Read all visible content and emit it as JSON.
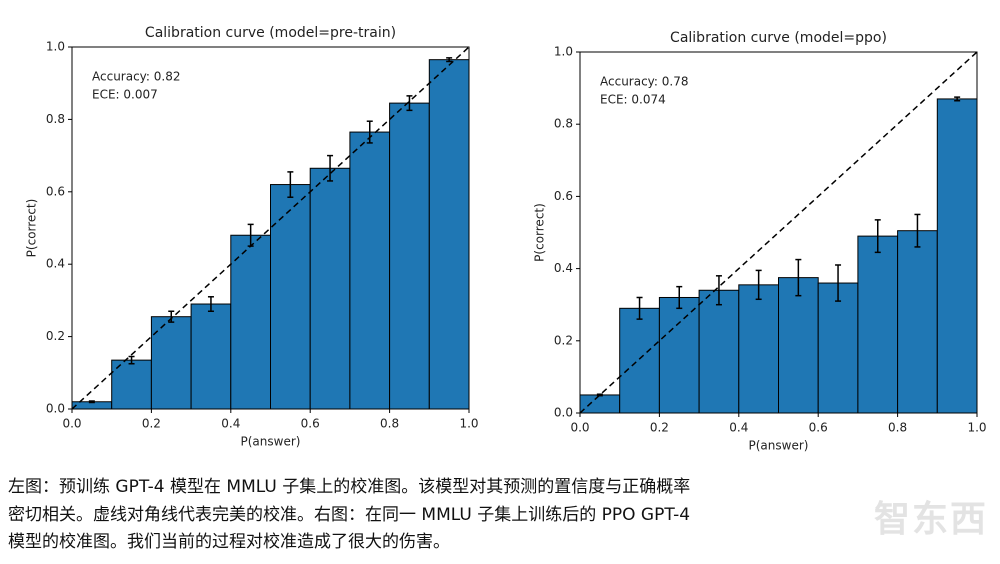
{
  "chart_data": [
    {
      "type": "histogram",
      "title": "Calibration curve (model=pre-train)",
      "xlabel": "P(answer)",
      "ylabel": "P(correct)",
      "annotations": [
        "Accuracy: 0.82",
        "ECE: 0.007"
      ],
      "bins": [
        0,
        0.1,
        0.2,
        0.3,
        0.4,
        0.5,
        0.6,
        0.7,
        0.8,
        0.9,
        1
      ],
      "values": [
        0.02,
        0.135,
        0.255,
        0.29,
        0.48,
        0.62,
        0.665,
        0.765,
        0.845,
        0.965
      ],
      "errors": [
        0.002,
        0.01,
        0.015,
        0.02,
        0.03,
        0.035,
        0.035,
        0.03,
        0.02,
        0.005
      ],
      "color": "#1f77b4",
      "xlim": [
        0,
        1
      ],
      "ylim": [
        0,
        1
      ],
      "xticks": [
        {
          "value": 0,
          "label": "0.0"
        },
        0.2,
        0.4,
        0.6,
        0.8,
        {
          "value": 1,
          "label": "1.0"
        }
      ],
      "yticks": [
        {
          "value": 0,
          "label": "0.0"
        },
        0.2,
        0.4,
        0.6,
        0.8,
        {
          "value": 1,
          "label": "1.0"
        }
      ]
    },
    {
      "type": "histogram",
      "title": "Calibration curve (model=ppo)",
      "xlabel": "P(answer)",
      "ylabel": "P(correct)",
      "annotations": [
        "Accuracy: 0.78",
        "ECE: 0.074"
      ],
      "bins": [
        0,
        0.1,
        0.2,
        0.3,
        0.4,
        0.5,
        0.6,
        0.7,
        0.8,
        0.9,
        1
      ],
      "values": [
        0.05,
        0.29,
        0.32,
        0.34,
        0.355,
        0.375,
        0.36,
        0.49,
        0.505,
        0.87
      ],
      "errors": [
        0.002,
        0.03,
        0.03,
        0.04,
        0.04,
        0.05,
        0.05,
        0.045,
        0.045,
        0.005
      ],
      "color": "#1f77b4",
      "xlim": [
        0,
        1
      ],
      "ylim": [
        0,
        1
      ],
      "xticks": [
        {
          "value": 0,
          "label": "0.0"
        },
        0.2,
        0.4,
        0.6,
        0.8,
        {
          "value": 1,
          "label": "1.0"
        }
      ],
      "yticks": [
        {
          "value": 0,
          "label": "0.0"
        },
        0.2,
        0.4,
        0.6,
        0.8,
        {
          "value": 1,
          "label": "1.0"
        }
      ]
    }
  ],
  "caption": [
    "左图：预训练 GPT-4 模型在 MMLU 子集上的校准图。该模型对其预测的置信度与正确概率",
    "密切相关。虚线对角线代表完美的校准。右图：在同一 MMLU 子集上训练后的 PPO GPT-4",
    "模型的校准图。我们当前的过程对校准造成了很大的伤害。"
  ],
  "watermark": "智东西"
}
